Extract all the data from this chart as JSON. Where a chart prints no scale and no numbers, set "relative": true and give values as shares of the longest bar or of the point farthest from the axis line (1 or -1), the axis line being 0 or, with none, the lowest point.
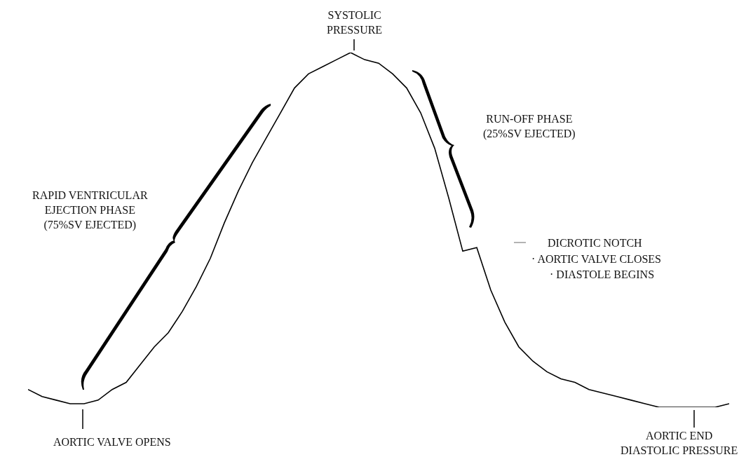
{
  "chart_data": {
    "type": "line",
    "relative": true,
    "color": "#000000",
    "categories": [
      null,
      null,
      null,
      null,
      null,
      null,
      null,
      null,
      null,
      null,
      null,
      null,
      null,
      null,
      null,
      null,
      null,
      null,
      null,
      null,
      null,
      null,
      null,
      null,
      null,
      null,
      null,
      null,
      null,
      null,
      null,
      null,
      null,
      null,
      null,
      null,
      null,
      null,
      null,
      null,
      null,
      null,
      null,
      null,
      null,
      null,
      null,
      null,
      null,
      null,
      null
    ],
    "values": [
      0.05,
      0.03,
      0.02,
      0.01,
      0.01,
      0.02,
      0.05,
      0.07,
      0.12,
      0.17,
      0.21,
      0.27,
      0.34,
      0.42,
      0.52,
      0.61,
      0.69,
      0.76,
      0.83,
      0.9,
      0.94,
      0.96,
      0.98,
      1.0,
      0.98,
      0.97,
      0.94,
      0.9,
      0.83,
      0.73,
      0.59,
      0.44,
      0.45,
      0.33,
      0.24,
      0.17,
      0.13,
      0.1,
      0.08,
      0.07,
      0.05,
      0.04,
      0.03,
      0.02,
      0.01,
      0.0,
      0.0,
      0.0,
      0.0,
      0.0,
      0.01
    ],
    "annotations": [
      "SYSTOLIC\nPRESSURE",
      "RAPID VENTRICULAR\nEJECTION PHASE\n(75%SV EJECTED)",
      "RUN-OFF PHASE\n(25%SV EJECTED)",
      "DICROTIC NOTCH",
      "· AORTIC VALVE CLOSES",
      "· DIASTOLE BEGINS",
      "AORTIC VALVE OPENS",
      "AORTIC END\nDIASTOLIC PRESSURE"
    ]
  }
}
